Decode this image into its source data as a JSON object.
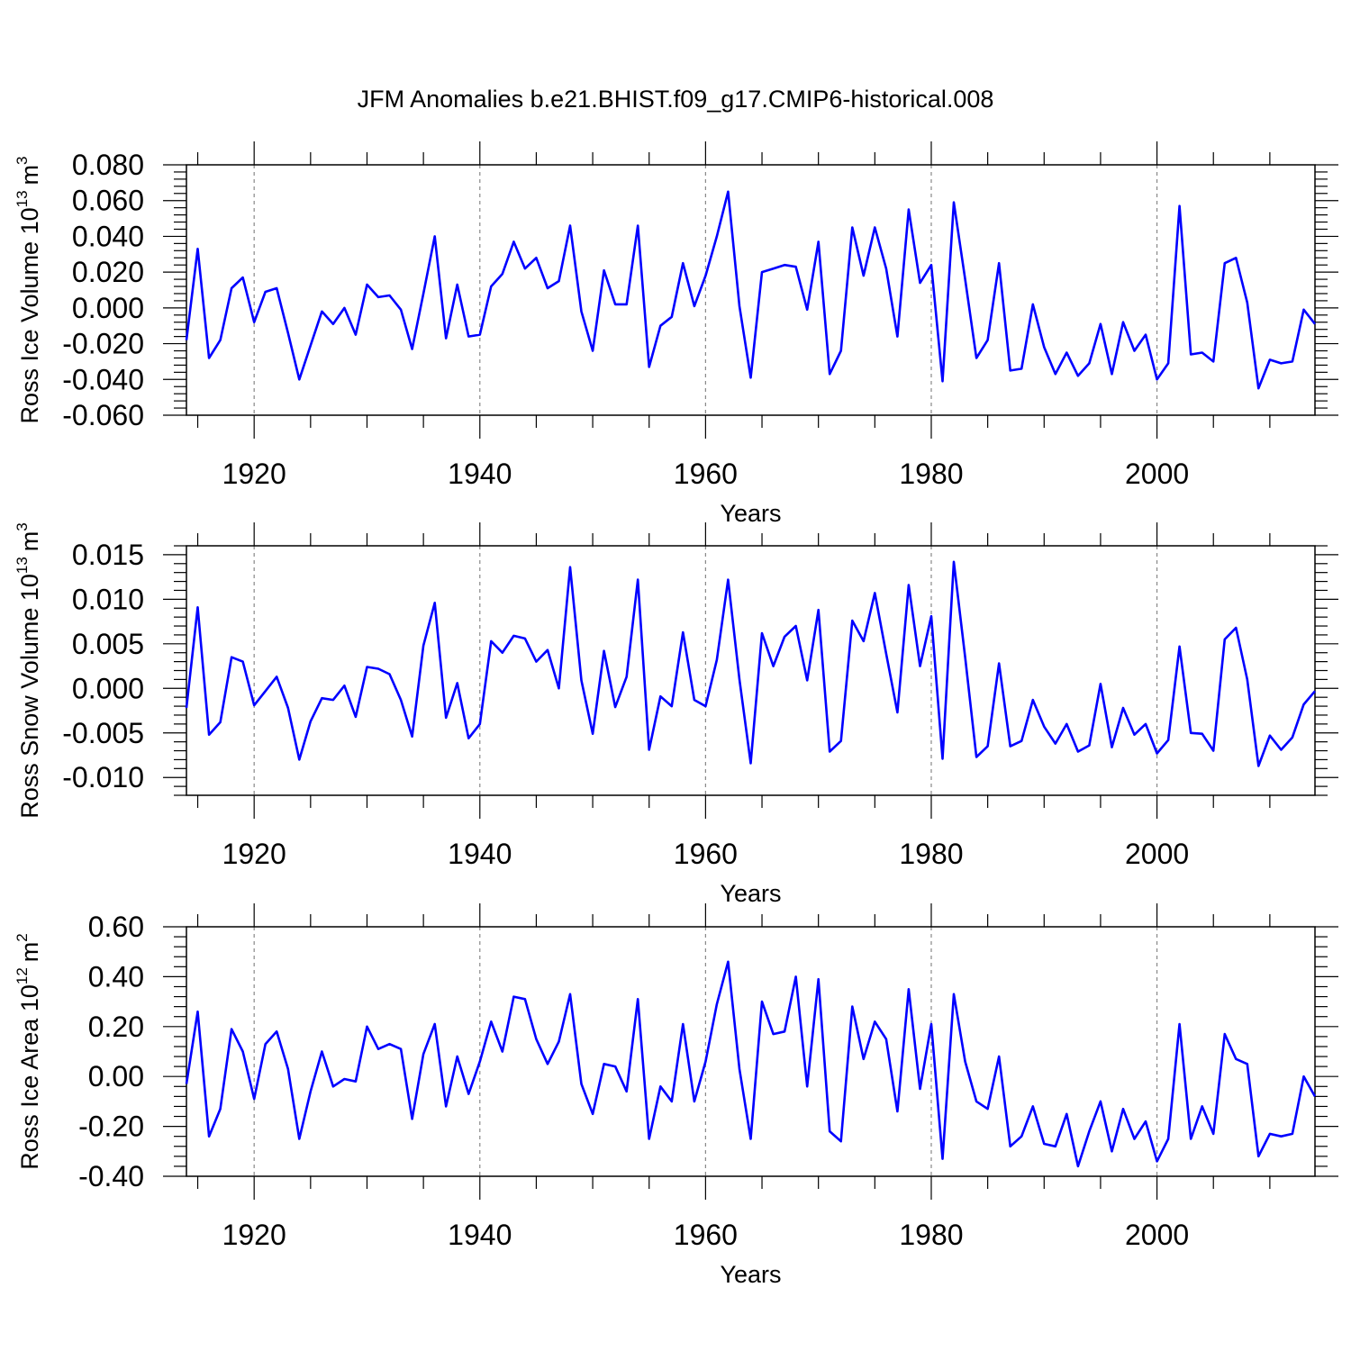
{
  "title": "JFM Anomalies b.e21.BHIST.f09_g17.CMIP6-historical.008",
  "line_color": "#0000ff",
  "chart_data": [
    {
      "type": "line",
      "ylabel_main": "Ross Ice Volume 10",
      "ylabel_sup": "13",
      "ylabel_unit": "m",
      "ylabel_unit_sup": "3",
      "xlabel": "Years",
      "xlim": [
        1914,
        2014
      ],
      "ylim": [
        -0.06,
        0.08
      ],
      "yticks": [
        -0.06,
        -0.04,
        -0.02,
        0.0,
        0.02,
        0.04,
        0.06,
        0.08
      ],
      "ytick_labels": [
        "-0.060",
        "-0.040",
        "-0.020",
        "0.000",
        "0.020",
        "0.040",
        "0.060",
        "0.080"
      ],
      "xticks": [
        1920,
        1940,
        1960,
        1980,
        2000
      ],
      "xtick_labels": [
        "1920",
        "1940",
        "1960",
        "1980",
        "2000"
      ],
      "start_year": 1914,
      "values": [
        -0.018,
        0.033,
        -0.028,
        -0.018,
        0.011,
        0.017,
        -0.008,
        0.009,
        0.011,
        -0.014,
        -0.04,
        -0.021,
        -0.002,
        -0.009,
        0.0,
        -0.015,
        0.013,
        0.006,
        0.007,
        -0.001,
        -0.023,
        0.008,
        0.04,
        -0.017,
        0.013,
        -0.016,
        -0.015,
        0.012,
        0.019,
        0.037,
        0.022,
        0.028,
        0.011,
        0.015,
        0.046,
        -0.002,
        -0.024,
        0.021,
        0.002,
        0.002,
        0.046,
        -0.033,
        -0.01,
        -0.005,
        0.025,
        0.001,
        0.018,
        0.04,
        0.065,
        0.001,
        -0.039,
        0.02,
        0.022,
        0.024,
        0.023,
        -0.001,
        0.037,
        -0.037,
        -0.024,
        0.045,
        0.018,
        0.045,
        0.022,
        -0.016,
        0.055,
        0.014,
        0.024,
        -0.041,
        0.059,
        0.016,
        -0.028,
        -0.018,
        0.025,
        -0.035,
        -0.034,
        0.002,
        -0.022,
        -0.037,
        -0.025,
        -0.038,
        -0.031,
        -0.009,
        -0.037,
        -0.008,
        -0.024,
        -0.015,
        -0.04,
        -0.031,
        0.057,
        -0.026,
        -0.025,
        -0.03,
        0.025,
        0.028,
        0.003,
        -0.045,
        -0.029,
        -0.031,
        -0.03,
        -0.001,
        -0.009
      ]
    },
    {
      "type": "line",
      "ylabel_main": "Ross Snow Volume 10",
      "ylabel_sup": "13",
      "ylabel_unit": "m",
      "ylabel_unit_sup": "3",
      "xlabel": "Years",
      "xlim": [
        1914,
        2014
      ],
      "ylim": [
        -0.012,
        0.016
      ],
      "yticks": [
        -0.01,
        -0.005,
        0.0,
        0.005,
        0.01,
        0.015
      ],
      "ytick_labels": [
        "-0.010",
        "-0.005",
        "0.000",
        "0.005",
        "0.010",
        "0.015"
      ],
      "xticks": [
        1920,
        1940,
        1960,
        1980,
        2000
      ],
      "xtick_labels": [
        "1920",
        "1940",
        "1960",
        "1980",
        "2000"
      ],
      "start_year": 1914,
      "values": [
        -0.0022,
        0.0091,
        -0.0052,
        -0.0038,
        0.0035,
        0.003,
        -0.0019,
        -0.0003,
        0.0013,
        -0.0022,
        -0.008,
        -0.0037,
        -0.0011,
        -0.0013,
        0.0003,
        -0.0032,
        0.0024,
        0.0022,
        0.0016,
        -0.0013,
        -0.0054,
        0.0048,
        0.0096,
        -0.0033,
        0.0006,
        -0.0056,
        -0.004,
        0.0053,
        0.004,
        0.0059,
        0.0056,
        0.003,
        0.0043,
        0.0,
        0.0136,
        0.0009,
        -0.0051,
        0.0042,
        -0.0021,
        0.0013,
        0.0122,
        -0.0069,
        -0.0009,
        -0.002,
        0.0063,
        -0.0013,
        -0.002,
        0.0032,
        0.0122,
        0.001,
        -0.0084,
        0.0062,
        0.0025,
        0.0058,
        0.007,
        0.0009,
        0.0088,
        -0.0071,
        -0.0059,
        0.0076,
        0.0053,
        0.0107,
        0.0039,
        -0.0027,
        0.0116,
        0.0025,
        0.0081,
        -0.0079,
        0.0142,
        0.0035,
        -0.0077,
        -0.0065,
        0.0028,
        -0.0065,
        -0.0059,
        -0.0013,
        -0.0043,
        -0.0062,
        -0.004,
        -0.0071,
        -0.0064,
        0.0005,
        -0.0066,
        -0.0022,
        -0.0052,
        -0.004,
        -0.0073,
        -0.0058,
        0.0047,
        -0.005,
        -0.0051,
        -0.007,
        0.0055,
        0.0068,
        0.001,
        -0.0087,
        -0.0053,
        -0.0069,
        -0.0055,
        -0.0018,
        -0.0003
      ]
    },
    {
      "type": "line",
      "ylabel_main": "Ross Ice Area 10",
      "ylabel_sup": "12",
      "ylabel_unit": "m",
      "ylabel_unit_sup": "2",
      "xlabel": "Years",
      "xlim": [
        1914,
        2014
      ],
      "ylim": [
        -0.4,
        0.6
      ],
      "yticks": [
        -0.4,
        -0.2,
        0.0,
        0.2,
        0.4,
        0.6
      ],
      "ytick_labels": [
        "-0.40",
        "-0.20",
        "0.00",
        "0.20",
        "0.40",
        "0.60"
      ],
      "xticks": [
        1920,
        1940,
        1960,
        1980,
        2000
      ],
      "xtick_labels": [
        "1920",
        "1940",
        "1960",
        "1980",
        "2000"
      ],
      "start_year": 1914,
      "values": [
        -0.03,
        0.26,
        -0.24,
        -0.13,
        0.19,
        0.1,
        -0.09,
        0.13,
        0.18,
        0.03,
        -0.25,
        -0.06,
        0.1,
        -0.04,
        -0.01,
        -0.02,
        0.2,
        0.11,
        0.13,
        0.11,
        -0.17,
        0.09,
        0.21,
        -0.12,
        0.08,
        -0.07,
        0.06,
        0.22,
        0.1,
        0.32,
        0.31,
        0.15,
        0.05,
        0.14,
        0.33,
        -0.03,
        -0.15,
        0.05,
        0.04,
        -0.06,
        0.31,
        -0.25,
        -0.04,
        -0.1,
        0.21,
        -0.1,
        0.06,
        0.29,
        0.46,
        0.03,
        -0.25,
        0.3,
        0.17,
        0.18,
        0.4,
        -0.04,
        0.39,
        -0.22,
        -0.26,
        0.28,
        0.07,
        0.22,
        0.15,
        -0.14,
        0.35,
        -0.05,
        0.21,
        -0.33,
        0.33,
        0.06,
        -0.1,
        -0.13,
        0.08,
        -0.28,
        -0.24,
        -0.12,
        -0.27,
        -0.28,
        -0.15,
        -0.36,
        -0.22,
        -0.1,
        -0.3,
        -0.13,
        -0.25,
        -0.18,
        -0.34,
        -0.25,
        0.21,
        -0.25,
        -0.12,
        -0.23,
        0.17,
        0.07,
        0.05,
        -0.32,
        -0.23,
        -0.24,
        -0.23,
        0.0,
        -0.08
      ]
    }
  ]
}
